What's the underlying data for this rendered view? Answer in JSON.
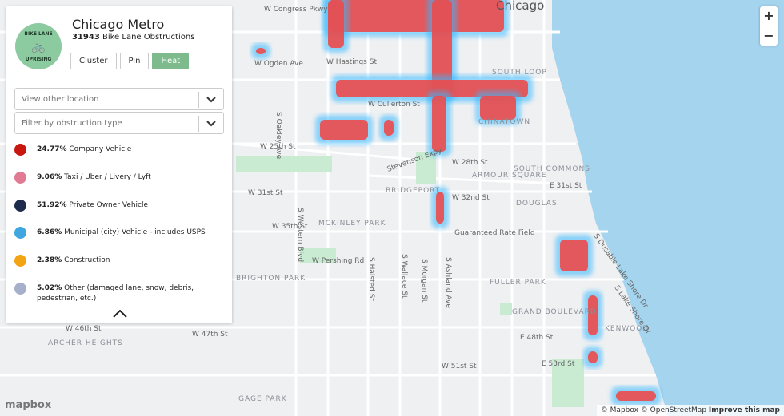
{
  "logo": {
    "top": "BIKE LANE",
    "bottom": "UPRISING"
  },
  "header": {
    "title": "Chicago Metro",
    "count": "31943",
    "count_label": "Bike Lane Obstructions"
  },
  "view_buttons": [
    {
      "label": "Cluster",
      "active": false
    },
    {
      "label": "Pin",
      "active": false
    },
    {
      "label": "Heat",
      "active": true
    }
  ],
  "selects": [
    "View other location",
    "Filter by obstruction type"
  ],
  "legend": [
    {
      "percent": "24.77%",
      "label": "Company Vehicle",
      "color": "#c8170f"
    },
    {
      "percent": "9.06%",
      "label": "Taxi / Uber / Livery / Lyft",
      "color": "#e07b93"
    },
    {
      "percent": "51.92%",
      "label": "Private Owner Vehicle",
      "color": "#1f2b4d"
    },
    {
      "percent": "6.86%",
      "label": "Municipal (city) Vehicle - includes USPS",
      "color": "#3fa6e0"
    },
    {
      "percent": "2.38%",
      "label": "Construction",
      "color": "#f2a413"
    },
    {
      "percent": "5.02%",
      "label": "Other (damaged lane, snow, debris, pedestrian, etc.)",
      "color": "#a7b0cb"
    }
  ],
  "map_labels": [
    "Chicago",
    "W Congress Pkwy",
    "W Hastings St",
    "W Ogden Ave",
    "W Cullerton St",
    "W 25th St",
    "W 31st St",
    "W 35th St",
    "W 28th St",
    "W 32nd St",
    "Stevenson Expy",
    "BRIDGEPORT",
    "ARMOUR SQUARE",
    "SOUTH COMMONS",
    "DOUGLAS",
    "MCKINLEY PARK",
    "Guaranteed Rate Field",
    "W Pershing Rd",
    "FULLER PARK",
    "GRAND BOULEVARD",
    "KENWOOD",
    "BRIGHTON PARK",
    "ARCHER HEIGHTS",
    "GAGE PARK",
    "W 47th St",
    "W 46th St",
    "W 51st St",
    "E 48th St",
    "E 53rd St",
    "CHINATOWN",
    "SOUTH LOOP",
    "E 31st St",
    "S Western Blvd",
    "S Oakley Ave",
    "S Halsted St",
    "S Wallace St",
    "S Morgan St",
    "S Ashland Ave",
    "S Dusable Lake Shore Dr",
    "S Lake Shore Dr"
  ],
  "zoom": [
    "+",
    "−"
  ],
  "attribution": {
    "logo": "mapbox",
    "mapbox": "© Mapbox",
    "osm": "© OpenStreetMap",
    "improve": "Improve this map"
  }
}
